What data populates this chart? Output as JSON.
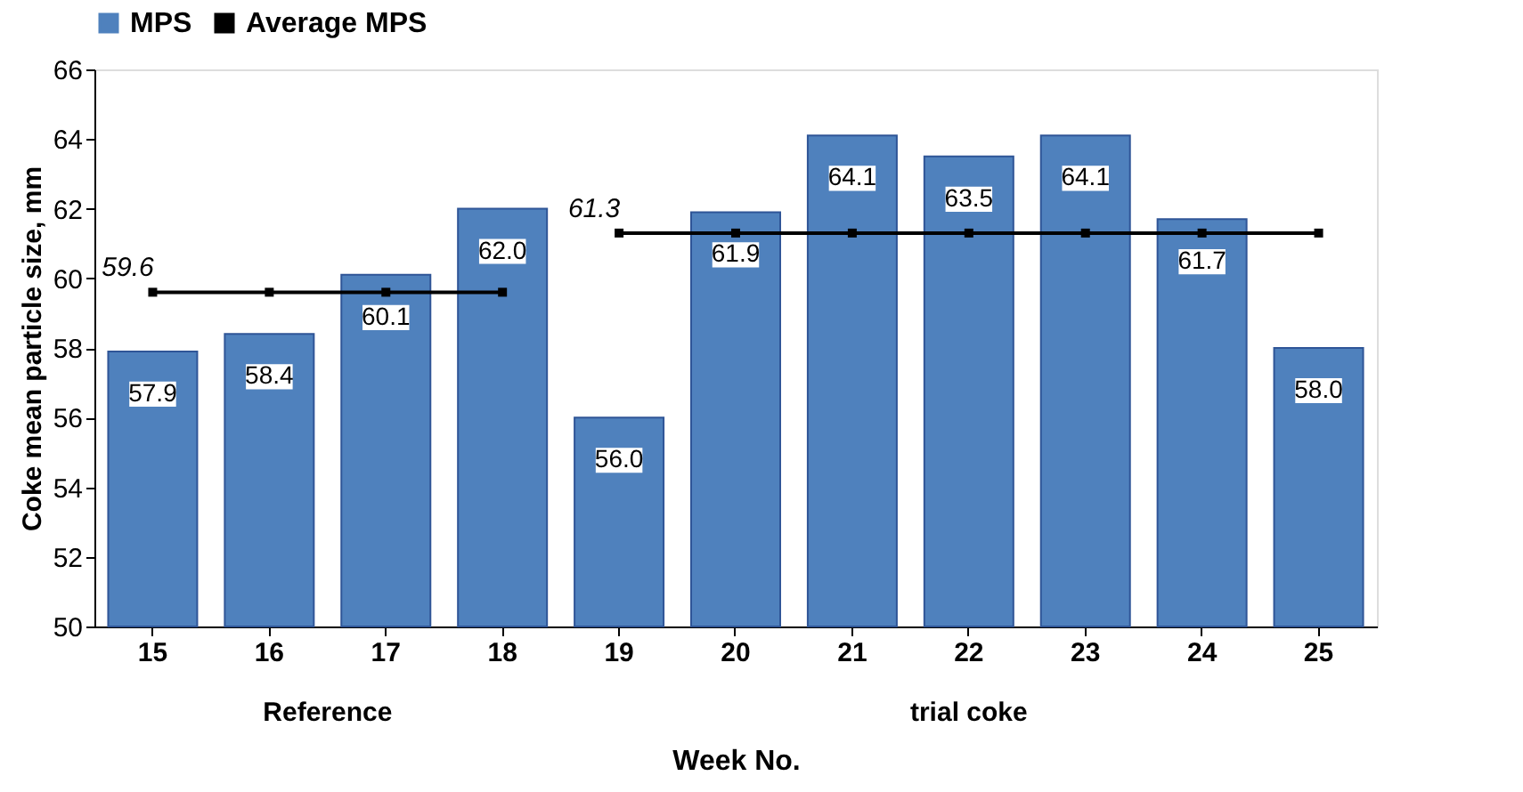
{
  "chart_data": {
    "type": "bar",
    "xlabel": "Week No.",
    "ylabel": "Coke mean particle size, mm",
    "categories": [
      "15",
      "16",
      "17",
      "18",
      "19",
      "20",
      "21",
      "22",
      "23",
      "24",
      "25"
    ],
    "series": [
      {
        "name": "MPS",
        "color": "#4f81bd",
        "values": [
          57.9,
          58.4,
          60.1,
          62.0,
          56.0,
          61.9,
          64.1,
          63.5,
          64.1,
          61.7,
          58.0
        ],
        "value_labels": [
          "57.9",
          "58.4",
          "60.1",
          "62.0",
          "56.0",
          "61.9",
          "64.1",
          "63.5",
          "64.1",
          "61.7",
          "58.0"
        ]
      },
      {
        "name": "Average MPS",
        "type": "line",
        "marker": "square",
        "color": "#000000",
        "values": [
          59.6,
          59.6,
          59.6,
          59.6,
          61.3,
          61.3,
          61.3,
          61.3,
          61.3,
          61.3,
          61.3
        ]
      }
    ],
    "annotations": [
      {
        "text": "59.6",
        "x": "15",
        "y": 59.6
      },
      {
        "text": "61.3",
        "x": "19",
        "y": 61.3
      },
      "Reference",
      "trial coke"
    ],
    "ylim": [
      50,
      66
    ],
    "yticks": [
      50,
      52,
      54,
      56,
      58,
      60,
      62,
      64,
      66
    ],
    "grid": false,
    "legend": "top"
  }
}
